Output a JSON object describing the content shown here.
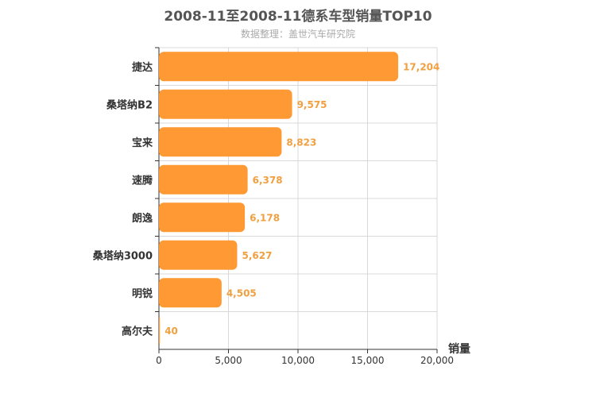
{
  "chart_data": {
    "type": "bar",
    "orientation": "horizontal",
    "title": "2008-11至2008-11德系车型销量TOP10",
    "subtitle": "数据整理：盖世汽车研究院",
    "xlabel": "销量",
    "ylabel": "",
    "categories": [
      "捷达",
      "桑塔纳B2",
      "宝来",
      "速腾",
      "朗逸",
      "桑塔纳3000",
      "明锐",
      "高尔夫"
    ],
    "values": [
      17204,
      9575,
      8823,
      6378,
      6178,
      5627,
      4505,
      40
    ],
    "data_labels": [
      "17,204",
      "9,575",
      "8,823",
      "6,378",
      "6,178",
      "5,627",
      "4,505",
      "40"
    ],
    "xlim": [
      0,
      20000
    ],
    "xticks": [
      0,
      5000,
      10000,
      15000,
      20000
    ],
    "xtick_labels": [
      "0",
      "5,000",
      "10,000",
      "15,000",
      "20,000"
    ],
    "grid": true,
    "bar_color": "#ff9933",
    "label_color": "#f0a040"
  }
}
